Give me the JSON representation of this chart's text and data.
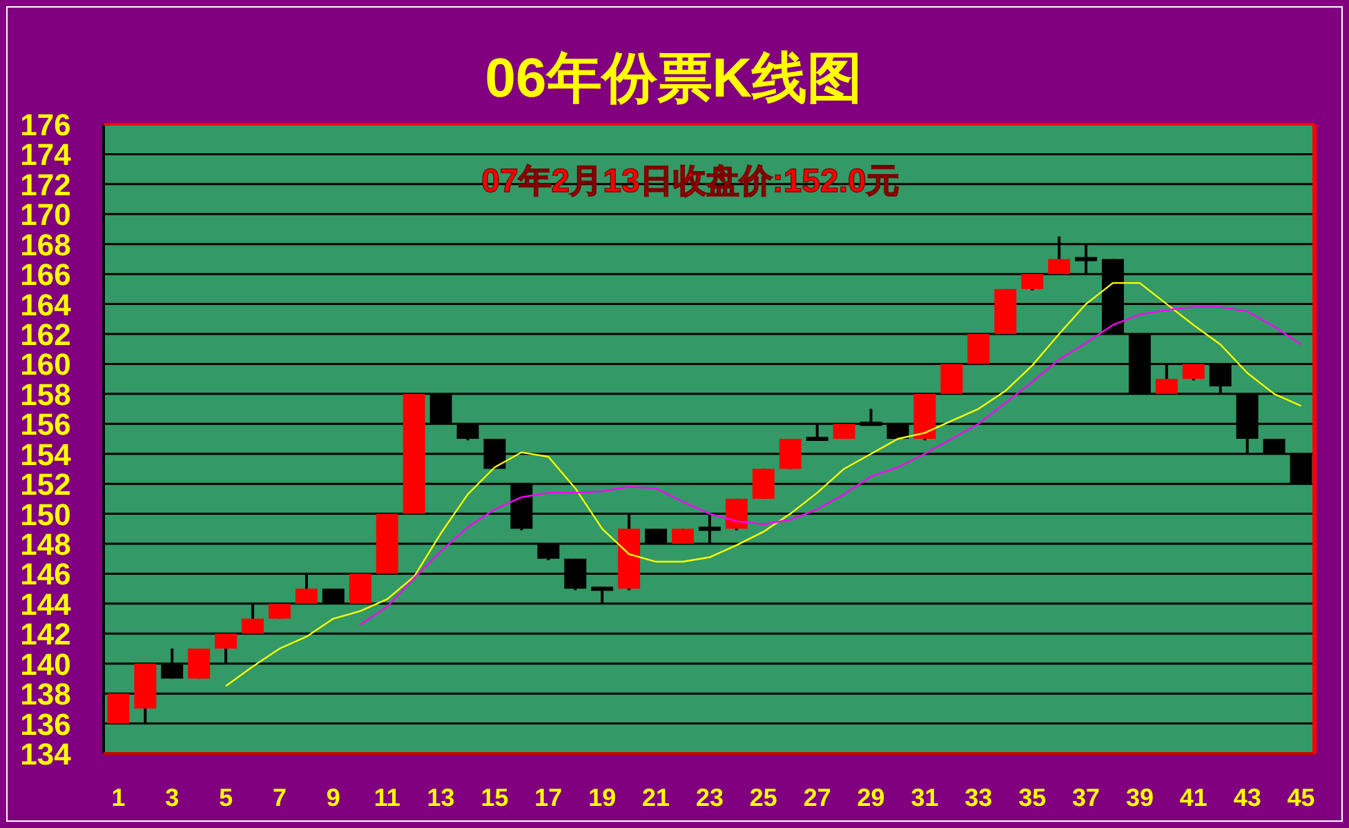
{
  "chart_data": {
    "type": "candlestick",
    "title": "06年份票K线图",
    "annotations": [
      "07年2月13日收盘价:152.0元"
    ],
    "x": [
      1,
      2,
      3,
      4,
      5,
      6,
      7,
      8,
      9,
      10,
      11,
      12,
      13,
      14,
      15,
      16,
      17,
      18,
      19,
      20,
      21,
      22,
      23,
      24,
      25,
      26,
      27,
      28,
      29,
      30,
      31,
      32,
      33,
      34,
      35,
      36,
      37,
      38,
      39,
      40,
      41,
      42,
      43,
      44,
      45
    ],
    "ohlc": [
      [
        136,
        138,
        136,
        138
      ],
      [
        137,
        140,
        136,
        140
      ],
      [
        140,
        141,
        139,
        139
      ],
      [
        139,
        141,
        139,
        141
      ],
      [
        141,
        142,
        140,
        142
      ],
      [
        142,
        144,
        142,
        143
      ],
      [
        143,
        144,
        143,
        144
      ],
      [
        144,
        146,
        144,
        145
      ],
      [
        145,
        145,
        144,
        144
      ],
      [
        144,
        146,
        144,
        146
      ],
      [
        146,
        150,
        146,
        150
      ],
      [
        150,
        158,
        150,
        158
      ],
      [
        158,
        158,
        156,
        156
      ],
      [
        156,
        156,
        154.9,
        155
      ],
      [
        155,
        155,
        153,
        153
      ],
      [
        152,
        152,
        148.9,
        149
      ],
      [
        148,
        148,
        146.9,
        147
      ],
      [
        147,
        147,
        144.9,
        145
      ],
      [
        145,
        145,
        144,
        145
      ],
      [
        145,
        150,
        144.9,
        149
      ],
      [
        149,
        149,
        148,
        148
      ],
      [
        148,
        149,
        148,
        149
      ],
      [
        149,
        150,
        148,
        149
      ],
      [
        149,
        151,
        148.9,
        151
      ],
      [
        151,
        153,
        151,
        153
      ],
      [
        153,
        155,
        153,
        155
      ],
      [
        155,
        156,
        155,
        155
      ],
      [
        155,
        156,
        155,
        156
      ],
      [
        156,
        157,
        156,
        156
      ],
      [
        156,
        156,
        155,
        155
      ],
      [
        155,
        158,
        154.9,
        158
      ],
      [
        158,
        160,
        158,
        160
      ],
      [
        160,
        162,
        160,
        162
      ],
      [
        162,
        165,
        162,
        165
      ],
      [
        165,
        166,
        164.9,
        166
      ],
      [
        166,
        168.5,
        166,
        167
      ],
      [
        167,
        168,
        166,
        167
      ],
      [
        167,
        167,
        162,
        162
      ],
      [
        162,
        162,
        158,
        158
      ],
      [
        158,
        160,
        158,
        159
      ],
      [
        159,
        160,
        158.9,
        160
      ],
      [
        160,
        160,
        158,
        158.5
      ],
      [
        158,
        158,
        154,
        155
      ],
      [
        155,
        155,
        154,
        154
      ],
      [
        154,
        154,
        152,
        152
      ]
    ],
    "colors": [
      "#ff0000",
      "#ff0000",
      "#000000",
      "#ff0000",
      "#ff0000",
      "#ff0000",
      "#ff0000",
      "#ff0000",
      "#000000",
      "#ff0000",
      "#ff0000",
      "#ff0000",
      "#000000",
      "#000000",
      "#000000",
      "#000000",
      "#000000",
      "#000000",
      "#000000",
      "#ff0000",
      "#000000",
      "#ff0000",
      "#000000",
      "#ff0000",
      "#ff0000",
      "#ff0000",
      "#000000",
      "#ff0000",
      "#000000",
      "#000000",
      "#ff0000",
      "#ff0000",
      "#ff0000",
      "#ff0000",
      "#ff0000",
      "#ff0000",
      "#000000",
      "#000000",
      "#000000",
      "#ff0000",
      "#ff0000",
      "#000000",
      "#000000",
      "#000000",
      "#000000"
    ],
    "series": [
      {
        "type": "line",
        "color": "#ffff00",
        "x": [
          5,
          6,
          7,
          8,
          9,
          10,
          11,
          12,
          13,
          14,
          15,
          16,
          17,
          18,
          19,
          20,
          21,
          22,
          23,
          24,
          25,
          26,
          27,
          28,
          29,
          30,
          31,
          32,
          33,
          34,
          35,
          36,
          37,
          38,
          39,
          40,
          41,
          42,
          43,
          44,
          45
        ],
        "values": [
          138.5,
          139.8,
          141.0,
          141.8,
          143.0,
          143.5,
          144.3,
          145.8,
          148.7,
          151.3,
          153.1,
          154.1,
          153.8,
          151.7,
          149.0,
          147.3,
          146.8,
          146.8,
          147.1,
          147.9,
          148.8,
          150.0,
          151.4,
          153.0,
          154.0,
          155.0,
          155.4,
          156.2,
          157.0,
          158.2,
          159.9,
          162.0,
          164.0,
          165.4,
          165.4,
          164.0,
          162.6,
          161.3,
          159.4,
          158.0,
          157.2
        ]
      },
      {
        "type": "line",
        "color": "#ff00ff",
        "x": [
          10,
          11,
          12,
          13,
          14,
          15,
          16,
          17,
          18,
          19,
          20,
          21,
          22,
          23,
          24,
          25,
          26,
          27,
          28,
          29,
          30,
          31,
          32,
          33,
          34,
          35,
          36,
          37,
          38,
          39,
          40,
          41,
          42,
          43,
          44,
          45
        ],
        "values": [
          142.6,
          143.8,
          145.7,
          147.5,
          149.1,
          150.3,
          151.1,
          151.4,
          151.4,
          151.5,
          151.8,
          151.7,
          150.8,
          150.0,
          149.5,
          149.3,
          149.6,
          150.3,
          151.3,
          152.5,
          153.1,
          154.0,
          155.0,
          156.0,
          157.4,
          158.8,
          160.3,
          161.4,
          162.6,
          163.3,
          163.6,
          163.8,
          163.8,
          163.5,
          162.5,
          161.3
        ]
      }
    ],
    "xlim": [
      0.45,
      45.5
    ],
    "ylim": [
      134,
      176
    ],
    "xticks": [
      1,
      3,
      5,
      7,
      9,
      11,
      13,
      15,
      17,
      19,
      21,
      23,
      25,
      27,
      29,
      31,
      33,
      35,
      37,
      39,
      41,
      43,
      45
    ],
    "yticks": [
      134,
      136,
      138,
      140,
      142,
      144,
      146,
      148,
      150,
      152,
      154,
      156,
      158,
      160,
      162,
      164,
      166,
      168,
      170,
      172,
      174,
      176
    ],
    "grid": "y"
  }
}
